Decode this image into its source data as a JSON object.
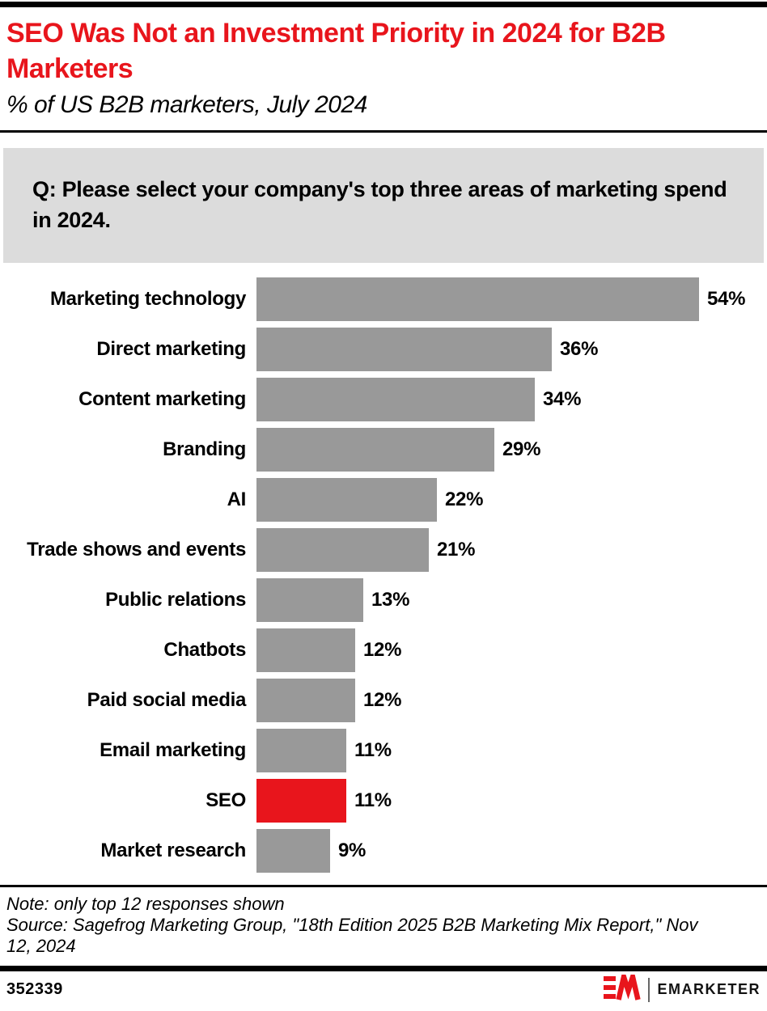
{
  "header": {
    "title": "SEO Was Not an Investment Priority in 2024 for B2B Marketers",
    "subtitle": "% of US B2B marketers, July 2024"
  },
  "question": "Q: Please select your company's top three areas of marketing spend in 2024.",
  "chart_data": {
    "type": "bar",
    "orientation": "horizontal",
    "categories": [
      "Marketing technology",
      "Direct marketing",
      "Content marketing",
      "Branding",
      "AI",
      "Trade shows and events",
      "Public relations",
      "Chatbots",
      "Paid social media",
      "Email marketing",
      "SEO",
      "Market research"
    ],
    "values": [
      54,
      36,
      34,
      29,
      22,
      21,
      13,
      12,
      12,
      11,
      11,
      9
    ],
    "value_suffix": "%",
    "xlim": [
      0,
      54
    ],
    "highlight_category": "SEO",
    "bar_color": "#999999",
    "highlight_color": "#e8151c",
    "grid": false,
    "legend": "none"
  },
  "note": "Note: only top 12 responses shown",
  "source": "Source: Sagefrog Marketing Group, \"18th Edition 2025 B2B Marketing Mix Report,\" Nov 12, 2024",
  "footer": {
    "chart_id": "352339",
    "brand_name": "EMARKETER"
  },
  "colors": {
    "accent_red": "#e8151c",
    "bar_gray": "#999999",
    "question_bg": "#dcdcdc",
    "black": "#000000"
  }
}
